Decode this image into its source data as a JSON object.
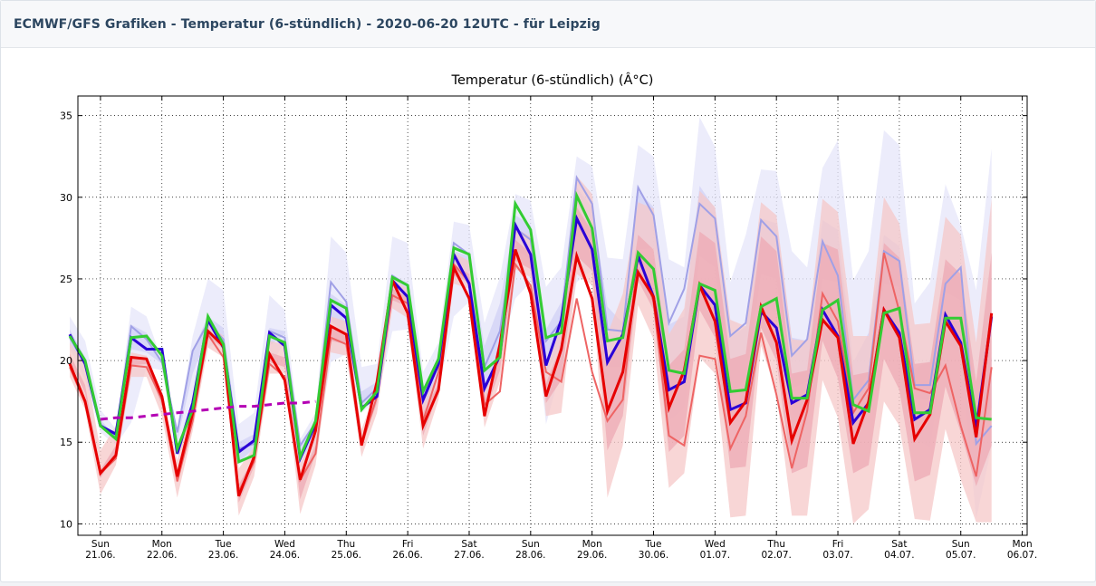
{
  "header": {
    "title": "ECMWF/GFS Grafiken - Temperatur (6-stündlich) - 2020-06-20 12UTC - für Leipzig"
  },
  "chart_data": {
    "type": "line",
    "title": "Temperatur (6-stündlich) (Â°C)",
    "ylim": [
      9.3,
      36.2
    ],
    "yticks": [
      10,
      15,
      20,
      25,
      30,
      35
    ],
    "x_unit": "days_since_2020-06-20",
    "xlim": [
      0.6328,
      16.08
    ],
    "grid": true,
    "xticks": [
      {
        "x": 1,
        "day": "Sun",
        "date": "21.06."
      },
      {
        "x": 2,
        "day": "Mon",
        "date": "22.06."
      },
      {
        "x": 3,
        "day": "Tue",
        "date": "23.06."
      },
      {
        "x": 4,
        "day": "Wed",
        "date": "24.06."
      },
      {
        "x": 5,
        "day": "Thu",
        "date": "25.06."
      },
      {
        "x": 6,
        "day": "Fri",
        "date": "26.06."
      },
      {
        "x": 7,
        "day": "Sat",
        "date": "27.06."
      },
      {
        "x": 8,
        "day": "Sun",
        "date": "28.06."
      },
      {
        "x": 9,
        "day": "Mon",
        "date": "29.06."
      },
      {
        "x": 10,
        "day": "Tue",
        "date": "30.06."
      },
      {
        "x": 11,
        "day": "Wed",
        "date": "01.07."
      },
      {
        "x": 12,
        "day": "Thu",
        "date": "02.07."
      },
      {
        "x": 13,
        "day": "Fri",
        "date": "03.07."
      },
      {
        "x": 14,
        "day": "Sat",
        "date": "04.07."
      },
      {
        "x": 15,
        "day": "Sun",
        "date": "05.07."
      },
      {
        "x": 16,
        "day": "Mon",
        "date": "06.07."
      }
    ],
    "x0": 0.5,
    "dx": 0.25,
    "colors": {
      "gfs_band_outer": "#e6e6fa",
      "gfs_band_inner": "#d2d2f5",
      "ecmwf_band_outer": "#f5c8c8",
      "ecmwf_band_inner": "#eeaab4",
      "gfs_control": "#a0a0e6",
      "gfs_main": "#2a00d6",
      "ecmwf_control": "#ee6464",
      "ecmwf_main": "#e60000",
      "green": "#33cc33",
      "climate": "#b400b4"
    },
    "bands": [
      {
        "name": "",
        "color_key": "gfs_band_outer",
        "lo": [
          20.8,
          18.8,
          15.6,
          14.8,
          16.2,
          19.6,
          19.4,
          14.4,
          16.9,
          20.8,
          21.3,
          13.6,
          14.2,
          19.5,
          21.2,
          13.4,
          14.5,
          19.9,
          20.4,
          16.8,
          17.6,
          21.8,
          21.9,
          15.5,
          18.1,
          22.7,
          23.6,
          16.9,
          20.4,
          23.8,
          24.8,
          16.1,
          19.5,
          24.8,
          25.5,
          17.9,
          18.4,
          24.7,
          24.6,
          16.3,
          17.1,
          24.1,
          23.5,
          16.3,
          16.2,
          23.4,
          22.9,
          16.8,
          16.0,
          22.8,
          22.3,
          14.8,
          16.9,
          22.3,
          21.4,
          15.2,
          14.7,
          21.1,
          20.5,
          10.3,
          14.7
        ],
        "hi": [
          22.7,
          21.2,
          17.0,
          15.8,
          23.3,
          22.7,
          20.0,
          15.6,
          21.5,
          25.0,
          24.3,
          16.1,
          16.8,
          24.0,
          23.1,
          15.2,
          16.8,
          27.6,
          26.6,
          19.6,
          19.8,
          27.6,
          27.2,
          19.3,
          21.1,
          28.5,
          28.3,
          22.3,
          25.1,
          30.2,
          29.8,
          24.5,
          25.7,
          32.5,
          31.9,
          26.3,
          26.2,
          33.2,
          32.5,
          26.2,
          25.7,
          34.9,
          33.1,
          24.8,
          27.7,
          31.7,
          31.6,
          26.7,
          25.7,
          31.8,
          33.5,
          24.9,
          26.7,
          34.1,
          33.2,
          23.5,
          24.8,
          30.8,
          28.3,
          24.3,
          33.0
        ]
      },
      {
        "name": "",
        "color_key": "gfs_band_inner",
        "lo": [
          21.1,
          19.5,
          16.1,
          15.1,
          20.7,
          20.5,
          19.8,
          15.1,
          19.2,
          21.6,
          21.5,
          13.8,
          14.6,
          20.9,
          21.6,
          13.9,
          15.2,
          22.4,
          21.7,
          17.2,
          18.2,
          24.4,
          24.0,
          16.9,
          19.0,
          25.0,
          25.4,
          18.1,
          20.9,
          26.8,
          26.2,
          19.2,
          21.0,
          27.6,
          26.9,
          19.6,
          19.6,
          26.8,
          26.9,
          18.4,
          18.6,
          26.4,
          25.7,
          17.8,
          18.9,
          25.3,
          25.0,
          18.3,
          18.7,
          25.0,
          24.8,
          17.5,
          19.3,
          24.7,
          24.5,
          17.7,
          17.6,
          24.2,
          23.7,
          14.8,
          17.1
        ],
        "hi": [
          21.9,
          20.2,
          16.4,
          15.3,
          22.2,
          21.7,
          19.8,
          15.4,
          20.6,
          22.7,
          22.0,
          15.0,
          15.5,
          22.0,
          21.8,
          14.8,
          16.2,
          24.1,
          23.4,
          18.1,
          18.7,
          25.1,
          24.8,
          18.0,
          20.2,
          26.7,
          26.4,
          20.9,
          23.5,
          28.9,
          28.3,
          21.9,
          23.6,
          30.6,
          29.4,
          23.3,
          22.3,
          30.4,
          29.4,
          22.2,
          22.7,
          30.7,
          29.3,
          21.4,
          22.1,
          28.7,
          28.4,
          21.4,
          21.2,
          28.6,
          28.0,
          19.9,
          21.7,
          27.7,
          27.0,
          19.5,
          20.0,
          25.9,
          25.0,
          17.6,
          20.2
        ]
      },
      {
        "name": "",
        "color_key": "ecmwf_band_outer",
        "lo": [
          19.0,
          17.0,
          11.8,
          13.6,
          19.0,
          19.0,
          16.6,
          11.6,
          15.7,
          20.8,
          20.2,
          10.5,
          12.9,
          19.2,
          19.2,
          10.6,
          13.6,
          20.5,
          20.3,
          14.1,
          16.8,
          23.2,
          22.6,
          14.6,
          17.6,
          24.7,
          24.4,
          15.9,
          18.7,
          25.6,
          25.1,
          16.6,
          16.8,
          25.3,
          24.6,
          11.6,
          14.8,
          23.4,
          21.3,
          12.2,
          13.1,
          20.2,
          19.2,
          10.4,
          10.5,
          20.9,
          18.0,
          10.5,
          10.5,
          18.8,
          16.5,
          10.0,
          10.9,
          17.5,
          16.0,
          10.3,
          10.2,
          15.8,
          12.7,
          10.1,
          10.1
        ],
        "hi": [
          21.1,
          19.8,
          14.5,
          16.0,
          20.5,
          20.3,
          17.8,
          13.9,
          17.6,
          22.3,
          21.5,
          13.4,
          14.7,
          21.2,
          21.0,
          13.7,
          15.4,
          22.7,
          22.4,
          15.8,
          18.3,
          25.0,
          24.4,
          17.5,
          19.2,
          26.6,
          26.1,
          18.2,
          20.8,
          28.1,
          27.6,
          19.4,
          22.2,
          31.3,
          30.2,
          21.6,
          24.1,
          29.7,
          29.3,
          21.6,
          23.2,
          30.4,
          29.4,
          22.5,
          22.1,
          29.7,
          28.9,
          21.3,
          21.2,
          29.9,
          29.1,
          21.5,
          21.5,
          30.0,
          28.4,
          22.2,
          22.3,
          28.8,
          27.7,
          21.1,
          29.9
        ]
      },
      {
        "name": "",
        "color_key": "ecmwf_band_inner",
        "lo": [
          20.0,
          18.0,
          12.8,
          14.3,
          19.7,
          19.8,
          17.2,
          12.5,
          16.3,
          21.5,
          20.7,
          11.3,
          13.5,
          19.9,
          19.6,
          11.5,
          14.3,
          21.2,
          21.0,
          14.9,
          17.4,
          23.7,
          23.3,
          15.4,
          18.1,
          25.2,
          24.8,
          16.7,
          19.4,
          26.1,
          25.6,
          17.4,
          18.8,
          26.4,
          25.5,
          14.5,
          16.6,
          24.9,
          23.1,
          14.4,
          15.4,
          23.1,
          21.4,
          13.4,
          13.5,
          22.0,
          20.0,
          13.1,
          13.5,
          21.2,
          18.9,
          13.1,
          13.6,
          20.1,
          18.2,
          12.6,
          13.0,
          18.4,
          15.6,
          12.3,
          14.8
        ],
        "hi": [
          20.4,
          18.5,
          13.3,
          14.8,
          20.1,
          20.0,
          17.6,
          12.9,
          16.7,
          21.8,
          21.0,
          12.4,
          14.1,
          20.5,
          20.2,
          12.7,
          14.8,
          22.1,
          21.5,
          15.3,
          17.9,
          24.4,
          23.9,
          16.8,
          18.6,
          25.9,
          25.3,
          17.6,
          20.2,
          27.4,
          26.6,
          18.6,
          21.0,
          29.4,
          27.9,
          19.9,
          21.6,
          27.7,
          26.8,
          19.7,
          20.7,
          27.9,
          27.2,
          20.1,
          20.4,
          27.6,
          26.7,
          19.2,
          19.4,
          27.2,
          26.8,
          19.1,
          19.3,
          27.2,
          26.3,
          19.8,
          19.9,
          26.2,
          25.3,
          18.7,
          26.6
        ]
      }
    ],
    "series": [
      {
        "name": "",
        "color_key": "gfs_control",
        "width": 2,
        "x_start": 0.5,
        "values": [
          21.4,
          19.8,
          16.1,
          15.3,
          22.1,
          21.3,
          19.9,
          15.6,
          20.6,
          22.3,
          21.3,
          14.6,
          14.9,
          21.8,
          21.4,
          14.8,
          16.2,
          24.8,
          23.6,
          17.4,
          18.3,
          25.2,
          24.6,
          17.5,
          19.8,
          27.2,
          26.5,
          19.6,
          21.8,
          28.1,
          27.4,
          21.2,
          22.4,
          31.2,
          29.6,
          21.9,
          21.8,
          30.6,
          28.9,
          22.3,
          24.4,
          29.6,
          28.7,
          21.5,
          22.3,
          28.6,
          27.6,
          20.3,
          21.3,
          27.3,
          25.2,
          17.6,
          18.8,
          26.7,
          26.1,
          18.5,
          18.5,
          24.7,
          25.7,
          14.9,
          16.0
        ]
      },
      {
        "name": "",
        "color_key": "ecmwf_control",
        "width": 2,
        "x_start": 0.5,
        "values": [
          19.6,
          17.4,
          13.1,
          14.0,
          19.7,
          19.6,
          17.6,
          12.6,
          16.3,
          21.6,
          20.2,
          12.0,
          13.8,
          19.8,
          19.0,
          12.7,
          14.3,
          21.4,
          21.0,
          14.8,
          17.8,
          24.0,
          23.5,
          16.3,
          19.3,
          25.9,
          24.8,
          17.3,
          18.1,
          25.9,
          24.6,
          19.3,
          18.7,
          23.8,
          19.3,
          16.3,
          17.6,
          26.6,
          23.6,
          15.4,
          14.8,
          20.3,
          20.1,
          14.6,
          16.6,
          21.7,
          17.9,
          13.4,
          16.9,
          24.1,
          22.4,
          16.8,
          18.3,
          26.6,
          23.0,
          18.3,
          18.0,
          19.7,
          16.0,
          12.9,
          19.6
        ]
      },
      {
        "name": "",
        "color_key": "gfs_main",
        "width": 3,
        "x_start": 0.5,
        "values": [
          21.6,
          19.8,
          16.0,
          15.5,
          21.4,
          20.7,
          20.7,
          14.3,
          17.4,
          22.5,
          20.8,
          14.4,
          15.1,
          21.7,
          20.9,
          14.0,
          16.1,
          23.4,
          22.6,
          17.1,
          17.8,
          24.9,
          23.9,
          17.6,
          19.8,
          26.5,
          24.7,
          18.3,
          20.3,
          28.3,
          26.5,
          19.7,
          22.5,
          28.7,
          26.8,
          19.9,
          21.6,
          26.4,
          23.9,
          18.2,
          18.7,
          24.6,
          23.4,
          17.0,
          17.4,
          23.0,
          22.0,
          17.4,
          17.9,
          23.1,
          21.5,
          16.2,
          17.4,
          23.1,
          21.7,
          16.4,
          17.0,
          22.8,
          21.1,
          15.8,
          22.7
        ]
      },
      {
        "name": "",
        "color_key": "ecmwf_main",
        "width": 3,
        "x_start": 0.5,
        "values": [
          19.8,
          17.5,
          13.1,
          14.2,
          20.2,
          20.1,
          17.8,
          12.9,
          16.8,
          21.8,
          20.9,
          11.7,
          14.1,
          20.4,
          18.8,
          12.7,
          15.7,
          22.1,
          21.6,
          14.8,
          18.7,
          24.9,
          22.9,
          16.0,
          18.2,
          25.7,
          23.8,
          16.6,
          21.0,
          26.8,
          24.1,
          17.8,
          20.7,
          26.4,
          23.8,
          16.9,
          19.3,
          25.4,
          23.9,
          17.1,
          19.4,
          24.6,
          22.4,
          16.2,
          17.5,
          23.3,
          21.1,
          15.1,
          17.6,
          22.5,
          21.4,
          14.9,
          17.5,
          23.1,
          21.4,
          15.2,
          16.7,
          22.4,
          20.9,
          15.3,
          22.9
        ]
      },
      {
        "name": "",
        "color_key": "green",
        "width": 3,
        "x_start": 0.5,
        "values": [
          21.5,
          20.0,
          16.0,
          15.2,
          21.4,
          21.5,
          20.3,
          14.6,
          17.0,
          22.7,
          21.0,
          13.8,
          14.2,
          21.5,
          21.1,
          14.1,
          16.3,
          23.7,
          23.2,
          17.0,
          18.1,
          25.1,
          24.6,
          18.1,
          20.1,
          26.9,
          26.5,
          19.4,
          20.2,
          29.6,
          28.0,
          21.4,
          21.7,
          30.1,
          28.1,
          21.2,
          21.4,
          26.6,
          25.6,
          19.4,
          19.2,
          24.7,
          24.3,
          18.1,
          18.2,
          23.3,
          23.8,
          17.7,
          17.7,
          23.1,
          23.7,
          17.3,
          16.9,
          22.9,
          23.2,
          16.8,
          16.8,
          22.6,
          22.6,
          16.5,
          16.4
        ]
      },
      {
        "name": "",
        "color_key": "climate",
        "width": 3,
        "dash": "8,6",
        "x_start": 1.0,
        "values": [
          16.4,
          16.5,
          16.5,
          16.6,
          16.7,
          16.8,
          16.9,
          17.0,
          17.1,
          17.2,
          17.2,
          17.3,
          17.4,
          17.4,
          17.5
        ]
      }
    ]
  }
}
